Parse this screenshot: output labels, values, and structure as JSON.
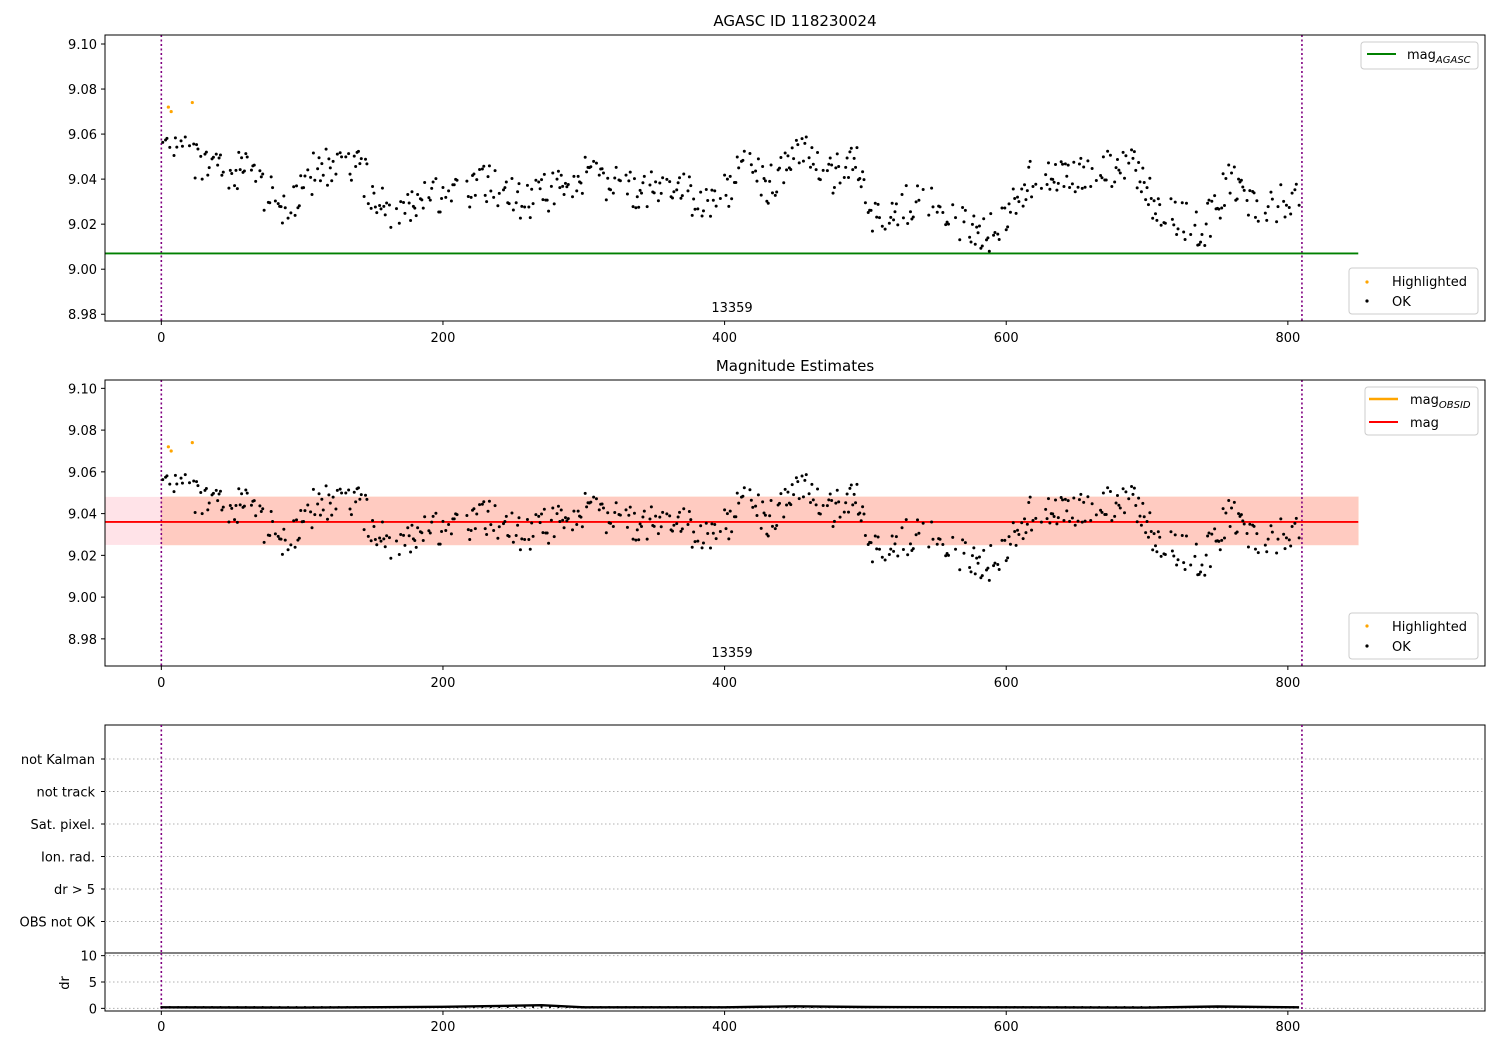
{
  "chart_data": [
    {
      "type": "scatter",
      "title": "AGASC ID 118230024",
      "xlabel": "",
      "ylabel": "",
      "xlim": [
        -40,
        940
      ],
      "ylim": [
        8.977,
        9.104
      ],
      "x_ticks": [
        "0",
        "200",
        "400",
        "600",
        "800"
      ],
      "y_ticks": [
        "8.98",
        "9.00",
        "9.02",
        "9.04",
        "9.06",
        "9.08",
        "9.10"
      ],
      "obsid_label": "13359",
      "vlines_x": [
        0,
        810
      ],
      "hlines": [
        {
          "name": "mag_AGASC",
          "y": 9.007,
          "x_range": [
            -40,
            850
          ],
          "color": "#008000"
        }
      ],
      "legend_upper": {
        "placement": "top-right",
        "entries": [
          {
            "label": "mag",
            "sub": "AGASC",
            "color": "#008000"
          }
        ]
      },
      "legend_lower": {
        "placement": "bottom-right",
        "entries": [
          {
            "label": "Highlighted",
            "color": "#ffa500"
          },
          {
            "label": "OK",
            "color": "#000000"
          }
        ]
      },
      "series": [
        {
          "name": "Highlighted",
          "color": "#ffa500",
          "x": [
            5,
            7,
            22
          ],
          "y": [
            9.072,
            9.07,
            9.074
          ]
        }
      ]
    },
    {
      "type": "scatter",
      "title": "Magnitude Estimates",
      "xlabel": "",
      "ylabel": "",
      "xlim": [
        -40,
        940
      ],
      "ylim": [
        8.967,
        9.104
      ],
      "x_ticks": [
        "0",
        "200",
        "400",
        "600",
        "800"
      ],
      "y_ticks": [
        "8.98",
        "9.00",
        "9.02",
        "9.04",
        "9.06",
        "9.08",
        "9.10"
      ],
      "obsid_label": "13359",
      "vlines_x": [
        0,
        810
      ],
      "band": {
        "y_min": 9.025,
        "y_max": 9.048,
        "x_range": [
          -40,
          850
        ],
        "color": "#ffc0cb"
      },
      "band_obsid": {
        "y_min": 9.025,
        "y_max": 9.048,
        "x_range": [
          0,
          850
        ],
        "color": "#ffa07a"
      },
      "hlines": [
        {
          "name": "mag",
          "y": 9.036,
          "x_range": [
            -40,
            850
          ],
          "color": "#ff0000"
        }
      ],
      "legend_upper": {
        "placement": "top-right",
        "entries": [
          {
            "label": "mag",
            "sub": "OBSID",
            "color": "#ffa500"
          },
          {
            "label": "mag",
            "sub": "",
            "color": "#ff0000"
          }
        ]
      },
      "legend_lower": {
        "placement": "bottom-right",
        "entries": [
          {
            "label": "Highlighted",
            "color": "#ffa500"
          },
          {
            "label": "OK",
            "color": "#000000"
          }
        ]
      },
      "series": [
        {
          "name": "Highlighted",
          "color": "#ffa500",
          "x": [
            5,
            7,
            22
          ],
          "y": [
            9.072,
            9.07,
            9.074
          ]
        }
      ]
    },
    {
      "type": "scatter",
      "title": "",
      "categories": [
        "not Kalman",
        "not track",
        "Sat. pixel.",
        "Ion. rad.",
        "dr > 5",
        "OBS not OK"
      ],
      "xlim": [
        -40,
        940
      ],
      "vlines_x": [
        0,
        810
      ],
      "grid": true
    },
    {
      "type": "line",
      "title": "",
      "xlabel": "",
      "ylabel": "dr",
      "xlim": [
        -40,
        940
      ],
      "ylim": [
        -0.5,
        10.5
      ],
      "x_ticks": [
        "0",
        "200",
        "400",
        "600",
        "800"
      ],
      "y_ticks": [
        "0",
        "5",
        "10"
      ],
      "vlines_x": [
        0,
        810
      ],
      "grid": true,
      "series": [
        {
          "name": "dr",
          "color": "#000000",
          "x": [
            0,
            100,
            200,
            250,
            270,
            300,
            400,
            450,
            500,
            600,
            700,
            750,
            808
          ],
          "y": [
            0.2,
            0.15,
            0.3,
            0.5,
            0.6,
            0.2,
            0.2,
            0.4,
            0.25,
            0.2,
            0.15,
            0.35,
            0.2
          ]
        }
      ]
    }
  ]
}
